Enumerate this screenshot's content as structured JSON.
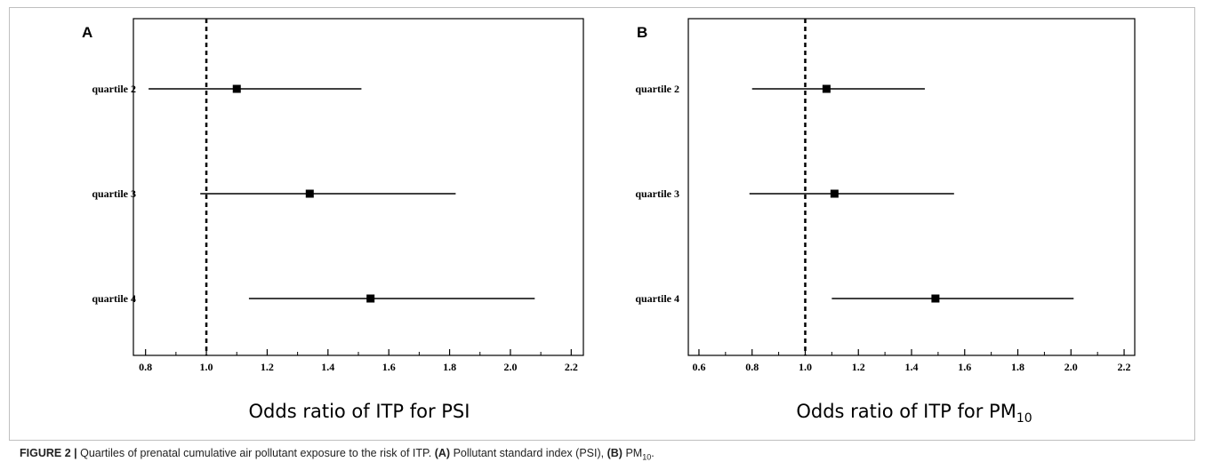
{
  "figure": {
    "caption_label": "FIGURE 2 |",
    "caption_text": "Quartiles of prenatal cumulative air pollutant exposure to the risk of ITP.",
    "caption_a_tag": "(A)",
    "caption_a_text": "Pollutant standard index (PSI),",
    "caption_b_tag": "(B)",
    "caption_b_main": "PM",
    "caption_b_sub": "10",
    "caption_end": "."
  },
  "chart_data": [
    {
      "type": "forest",
      "panel": "A",
      "xlabel": "Odds ratio of ITP for PSI",
      "xlabel_sub": "",
      "xlim": [
        0.76,
        2.24
      ],
      "xticks": [
        0.8,
        1.0,
        1.2,
        1.4,
        1.6,
        1.8,
        2.0,
        2.2
      ],
      "tick_labels": [
        "0.8",
        "1.0",
        "1.2",
        "1.4",
        "1.6",
        "1.8",
        "2.0",
        "2.2"
      ],
      "reference_line": 1.0,
      "categories": [
        "quartile 2",
        "quartile 3",
        "quartile 4"
      ],
      "or": [
        1.1,
        1.34,
        1.54
      ],
      "lower": [
        0.81,
        0.98,
        1.14
      ],
      "upper": [
        1.51,
        1.82,
        2.08
      ]
    },
    {
      "type": "forest",
      "panel": "B",
      "xlabel": "Odds ratio of ITP for PM",
      "xlabel_sub": "10",
      "xlim": [
        0.56,
        2.24
      ],
      "xticks": [
        0.6,
        0.8,
        1.0,
        1.2,
        1.4,
        1.6,
        1.8,
        2.0,
        2.2
      ],
      "tick_labels": [
        "0.6",
        "0.8",
        "1.0",
        "1.2",
        "1.4",
        "1.6",
        "1.8",
        "2.0",
        "2.2"
      ],
      "reference_line": 1.0,
      "categories": [
        "quartile 2",
        "quartile 3",
        "quartile 4"
      ],
      "or": [
        1.08,
        1.11,
        1.49
      ],
      "lower": [
        0.8,
        0.79,
        1.1
      ],
      "upper": [
        1.45,
        1.56,
        2.01
      ]
    }
  ]
}
